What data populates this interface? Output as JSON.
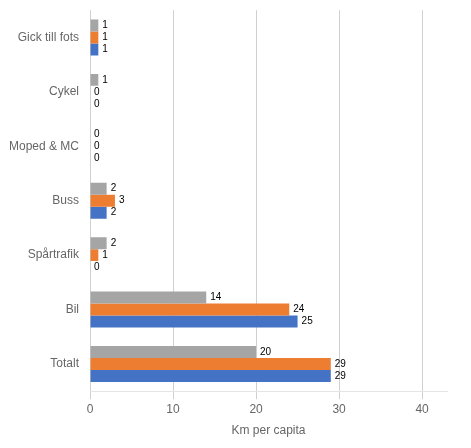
{
  "chart_data": {
    "type": "bar",
    "orientation": "horizontal",
    "categories": [
      "Totalt",
      "Bil",
      "Spårtrafik",
      "Buss",
      "Moped & MC",
      "Cykel",
      "Gick till fots"
    ],
    "series": [
      {
        "color": "#a5a5a5",
        "values": [
          20,
          14,
          2,
          2,
          0,
          1,
          1
        ]
      },
      {
        "color": "#ed7d31",
        "values": [
          29,
          24,
          1,
          3,
          0,
          0,
          1
        ]
      },
      {
        "color": "#4472c4",
        "values": [
          29,
          25,
          0,
          2,
          0,
          0,
          1
        ]
      }
    ],
    "xlabel": "Km per capita",
    "xlim": [
      0,
      43
    ],
    "xticks": [
      0,
      10,
      20,
      30,
      40
    ],
    "grid": true,
    "data_labels": true
  }
}
